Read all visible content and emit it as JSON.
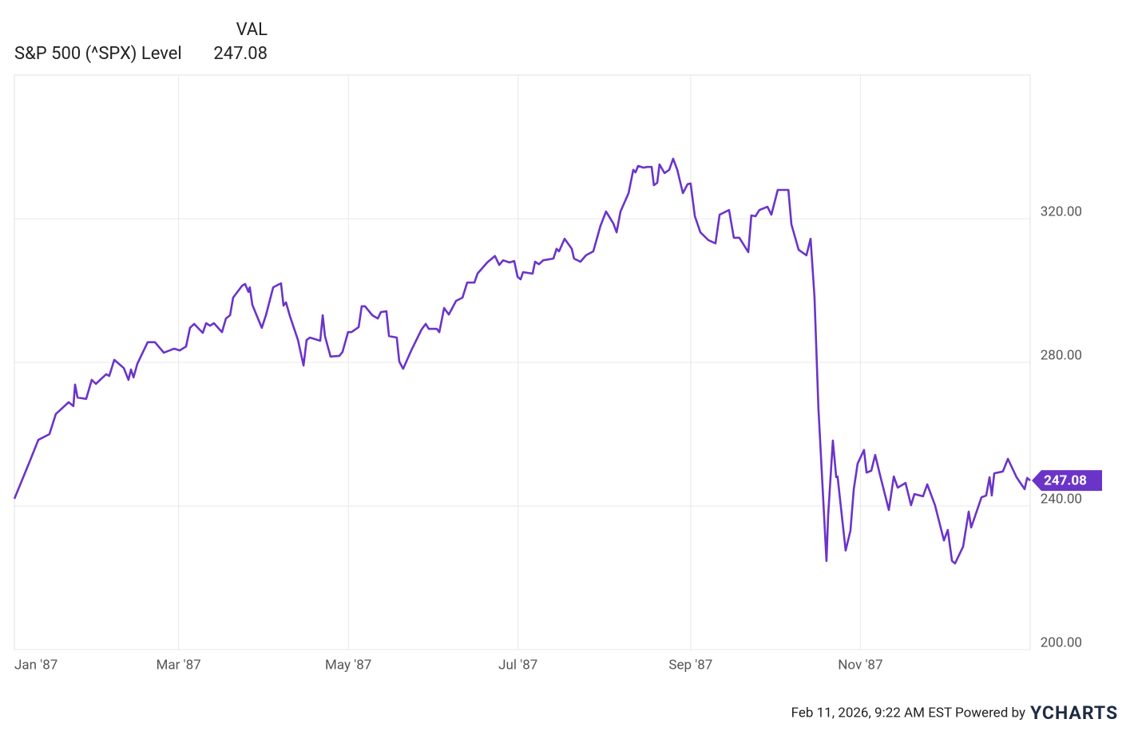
{
  "chart_data": {
    "type": "line",
    "legend_header": "VAL",
    "x": [
      0,
      5.5,
      8.6,
      12.6,
      14.9,
      19.5,
      21.2,
      21.8,
      22.7,
      25.8,
      27.8,
      29.3,
      33.0,
      34.1,
      35.9,
      39.3,
      41.0,
      41.9,
      42.8,
      44.2,
      47.9,
      50.5,
      53.7,
      57.4,
      59.4,
      61.7,
      63.1,
      64.6,
      67.7,
      68.9,
      70.3,
      71.7,
      74.6,
      76.0,
      77.5,
      78.6,
      81.8,
      82.9,
      84.1,
      84.6,
      85.5,
      88.9,
      90.4,
      93.0,
      95.8,
      96.7,
      97.6,
      99.0,
      101.9,
      103.9,
      105.0,
      106.2,
      109.9,
      110.8,
      111.6,
      113.6,
      116.8,
      117.9,
      119.9,
      121.1,
      123.7,
      124.8,
      126.0,
      128.6,
      130.6,
      131.7,
      133.7,
      134.6,
      137.4,
      138.3,
      139.7,
      142.6,
      146.3,
      147.8,
      148.9,
      151.8,
      152.7,
      154.4,
      156.1,
      158.7,
      161.0,
      162.7,
      165.3,
      166.4,
      169.9,
      172.7,
      174.2,
      175.6,
      177.9,
      179.6,
      180.8,
      181.9,
      182.8,
      186.2,
      187.1,
      188.5,
      190.0,
      193.7,
      194.8,
      195.7,
      197.7,
      200.3,
      201.1,
      203.4,
      205.4,
      208.0,
      210.6,
      212.6,
      215.2,
      216.4,
      217.8,
      220.7,
      222.4,
      223.2,
      224.1,
      226.1,
      227.3,
      229.0,
      229.8,
      231.0,
      231.8,
      233.6,
      235.3,
      236.7,
      238.2,
      240.2,
      241.9,
      243.0,
      244.5,
      246.5,
      249.4,
      251.9,
      253.4,
      256.8,
      258.5,
      260.5,
      263.7,
      264.8,
      266.3,
      267.7,
      270.6,
      272.0,
      274.3,
      278.1,
      279.2,
      281.8,
      284.6,
      286.1,
      287.5,
      288.9,
      291.8,
      292.4,
      294.1,
      295.3,
      295.8,
      298.7,
      300.4,
      301.6,
      303.0,
      305.3,
      306.2,
      307.9,
      309.3,
      311.1,
      314.2,
      316.0,
      317.4,
      320.2,
      322.2,
      323.4,
      326.5,
      328.0,
      330.8,
      334.0,
      335.4,
      336.9,
      338.0,
      340.9,
      342.9,
      343.8,
      347.5,
      349.2,
      350.4,
      351.2,
      352.1,
      355.2,
      357.0,
      360.1,
      363.0,
      363.9,
      365.0
    ],
    "series": [
      {
        "name": "S&P 500 (^SPX) Level",
        "color": "#6b34c8",
        "values": [
          242.0,
          252.4,
          258.4,
          260.0,
          265.6,
          268.9,
          267.8,
          273.8,
          270.2,
          269.8,
          275.1,
          274.0,
          276.7,
          276.2,
          280.7,
          278.4,
          275.1,
          278.0,
          275.8,
          279.6,
          285.6,
          285.6,
          282.7,
          283.8,
          283.3,
          284.4,
          289.6,
          290.7,
          288.2,
          290.9,
          290.2,
          290.9,
          288.4,
          292.2,
          293.1,
          298.0,
          301.3,
          301.8,
          299.6,
          300.9,
          296.0,
          289.6,
          293.1,
          300.9,
          302.0,
          295.8,
          296.7,
          292.9,
          286.2,
          279.1,
          286.2,
          286.9,
          286.0,
          293.1,
          287.3,
          281.6,
          281.8,
          282.9,
          288.4,
          288.4,
          289.8,
          295.6,
          295.6,
          293.1,
          292.2,
          294.0,
          294.2,
          287.3,
          286.9,
          280.2,
          278.2,
          283.3,
          289.1,
          290.7,
          289.3,
          289.3,
          288.4,
          295.1,
          293.3,
          297.1,
          298.0,
          302.2,
          302.2,
          304.7,
          307.8,
          309.6,
          307.1,
          308.4,
          307.8,
          308.2,
          303.8,
          303.1,
          305.1,
          304.7,
          308.0,
          307.3,
          308.4,
          308.9,
          311.6,
          310.9,
          314.4,
          311.6,
          308.9,
          308.0,
          309.8,
          310.9,
          318.0,
          322.0,
          318.7,
          316.2,
          322.0,
          327.1,
          333.6,
          332.9,
          334.7,
          334.2,
          334.4,
          334.4,
          329.3,
          330.0,
          335.1,
          332.7,
          333.6,
          336.7,
          333.6,
          327.1,
          329.6,
          329.8,
          320.7,
          316.2,
          314.0,
          313.1,
          321.1,
          322.4,
          314.7,
          314.7,
          310.7,
          320.9,
          320.7,
          322.4,
          323.3,
          321.1,
          328.0,
          328.0,
          318.4,
          311.3,
          309.8,
          314.4,
          298.2,
          267.3,
          224.7,
          237.3,
          258.2,
          248.0,
          248.2,
          227.6,
          233.1,
          244.7,
          251.8,
          255.6,
          249.3,
          249.8,
          254.2,
          248.4,
          238.9,
          248.2,
          245.1,
          246.4,
          240.2,
          243.3,
          242.7,
          246.0,
          240.2,
          230.4,
          233.3,
          224.7,
          224.0,
          228.7,
          238.4,
          234.0,
          242.4,
          242.9,
          248.0,
          242.9,
          249.1,
          249.6,
          253.1,
          248.0,
          244.7,
          247.8,
          247.08
        ]
      }
    ],
    "xlim": [
      0,
      365
    ],
    "xticks": [
      {
        "value": 0,
        "label": "Jan '87"
      },
      {
        "value": 59,
        "label": "Mar '87"
      },
      {
        "value": 120,
        "label": "May '87"
      },
      {
        "value": 181,
        "label": "Jul '87"
      },
      {
        "value": 243,
        "label": "Sep '87"
      },
      {
        "value": 304,
        "label": "Nov '87"
      }
    ],
    "ylim": [
      200,
      360
    ],
    "yticks": [
      {
        "value": 200,
        "label": "200.00"
      },
      {
        "value": 240,
        "label": "240.00"
      },
      {
        "value": 280,
        "label": "280.00"
      },
      {
        "value": 320,
        "label": "320.00"
      }
    ],
    "grid": true,
    "footer": "Feb 11, 2026, 9:22 AM EST Powered by",
    "brand": "YCHARTS"
  }
}
